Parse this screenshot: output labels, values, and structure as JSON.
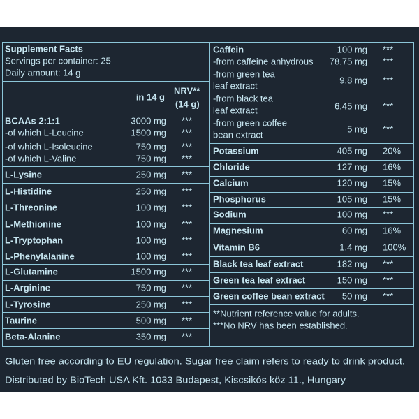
{
  "left": {
    "title": "Supplement Facts",
    "servings": "Servings per container: 25",
    "daily": "Daily amount: 14 g",
    "header": {
      "amount": "in 14 g",
      "nrv": [
        "NRV**",
        "(14 g)"
      ]
    },
    "rows": [
      {
        "name": [
          "BCAAs 2:1:1"
        ],
        "amount": "3000 mg",
        "nrv": "***"
      },
      {
        "name": [
          "-of which L-Leucine"
        ],
        "amount": "1500 mg",
        "nrv": "***"
      },
      {
        "name": [
          "-of which L-Isoleucine"
        ],
        "amount": "750 mg",
        "nrv": "***"
      },
      {
        "name": [
          "-of which L-Valine"
        ],
        "amount": "750 mg",
        "nrv": "***"
      },
      {
        "name": [
          "L-Lysine"
        ],
        "amount": "250 mg",
        "nrv": "***"
      },
      {
        "name": [
          "L-Histidine"
        ],
        "amount": "250 mg",
        "nrv": "***"
      },
      {
        "name": [
          "L-Threonine"
        ],
        "amount": "100 mg",
        "nrv": "***"
      },
      {
        "name": [
          "L-Methionine"
        ],
        "amount": "100 mg",
        "nrv": "***"
      },
      {
        "name": [
          "L-Tryptophan"
        ],
        "amount": "100 mg",
        "nrv": "***"
      },
      {
        "name": [
          "L-Phenylalanine"
        ],
        "amount": "100 mg",
        "nrv": "***"
      },
      {
        "name": [
          "L-Glutamine"
        ],
        "amount": "1500 mg",
        "nrv": "***"
      },
      {
        "name": [
          "L-Arginine"
        ],
        "amount": "750 mg",
        "nrv": "***"
      },
      {
        "name": [
          "L-Tyrosine"
        ],
        "amount": "250 mg",
        "nrv": "***"
      },
      {
        "name": [
          "Taurine"
        ],
        "amount": "500 mg",
        "nrv": "***"
      },
      {
        "name": [
          "Beta-Alanine"
        ],
        "amount": "350 mg",
        "nrv": "***"
      }
    ]
  },
  "right": {
    "rows": [
      {
        "name": [
          "Caffein"
        ],
        "amount": "100 mg",
        "nrv": "***"
      },
      {
        "name": [
          "-from caffeine anhydrous"
        ],
        "amount": "78.75 mg",
        "nrv": "***"
      },
      {
        "name": [
          "-from green tea",
          "leaf extract"
        ],
        "amount": "9.8 mg",
        "nrv": "***"
      },
      {
        "name": [
          "-from black tea",
          "leaf extract"
        ],
        "amount": "6.45 mg",
        "nrv": "***"
      },
      {
        "name": [
          "-from green coffee",
          "bean extract"
        ],
        "amount": "5 mg",
        "nrv": "***"
      },
      {
        "name": [
          "Potassium"
        ],
        "amount": "405 mg",
        "nrv": "20%"
      },
      {
        "name": [
          "Chloride"
        ],
        "amount": "127 mg",
        "nrv": "16%"
      },
      {
        "name": [
          "Calcium"
        ],
        "amount": "120 mg",
        "nrv": "15%"
      },
      {
        "name": [
          "Phosphorus"
        ],
        "amount": "105 mg",
        "nrv": "15%"
      },
      {
        "name": [
          "Sodium"
        ],
        "amount": "100 mg",
        "nrv": "***"
      },
      {
        "name": [
          "Magnesium"
        ],
        "amount": "60 mg",
        "nrv": "16%"
      },
      {
        "name": [
          "Vitamin B6"
        ],
        "amount": "1.4 mg",
        "nrv": "100%"
      },
      {
        "name": [
          "Black tea leaf extract"
        ],
        "amount": "182 mg",
        "nrv": "***"
      },
      {
        "name": [
          "Green tea leaf extract"
        ],
        "amount": "150 mg",
        "nrv": "***"
      },
      {
        "name": [
          "Green coffee bean extract"
        ],
        "amount": "50 mg",
        "nrv": "***"
      }
    ],
    "footnotes": [
      "**Nutrient reference value for adults.",
      "***No NRV has been established."
    ]
  },
  "footer": [
    "Gluten free according to EU regulation. Sugar free claim refers to ready to drink product.",
    "Distributed by BioTech USA Kft. 1033 Budapest, Kiscsikós köz 11., Hungary"
  ]
}
